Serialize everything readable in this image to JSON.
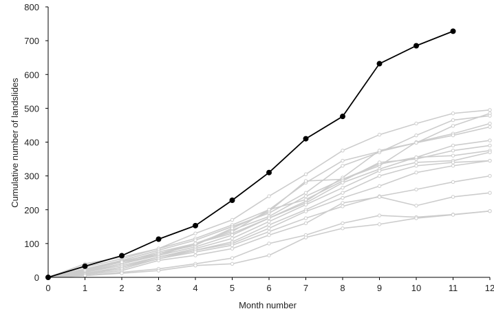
{
  "chart_data": {
    "type": "line",
    "title": "",
    "xlabel": "Month number",
    "ylabel": "Cumulative number of landslides",
    "xlim": [
      0,
      12
    ],
    "ylim": [
      0,
      800
    ],
    "x_ticks": [
      "0",
      "1",
      "2",
      "3",
      "4",
      "5",
      "6",
      "7",
      "8",
      "9",
      "10",
      "11",
      "12"
    ],
    "y_ticks": [
      "0",
      "100",
      "200",
      "300",
      "400",
      "500",
      "600",
      "700",
      "800"
    ],
    "grid": false,
    "legend": "none",
    "colors": {
      "highlight": "#000000",
      "background_series": "#cccccc",
      "axis": "#000000"
    },
    "highlight": {
      "x": [
        0,
        1,
        2,
        3,
        4,
        5,
        6,
        7,
        8,
        9,
        10,
        11
      ],
      "y": [
        0,
        33,
        64,
        113,
        153,
        228,
        310,
        410,
        476,
        632,
        685,
        728
      ]
    },
    "series": [
      {
        "x": [
          0,
          1,
          2,
          3,
          4,
          5,
          6,
          7,
          8,
          9,
          10,
          11,
          12
        ],
        "y": [
          0,
          40,
          60,
          85,
          130,
          170,
          240,
          305,
          375,
          422,
          455,
          485,
          495
        ]
      },
      {
        "x": [
          0,
          1,
          2,
          3,
          4,
          5,
          6,
          7,
          8,
          9,
          10,
          11,
          12
        ],
        "y": [
          0,
          30,
          55,
          85,
          115,
          155,
          200,
          280,
          345,
          372,
          398,
          448,
          485
        ]
      },
      {
        "x": [
          0,
          1,
          2,
          3,
          4,
          5,
          6,
          7,
          8,
          9,
          10,
          11,
          12
        ],
        "y": [
          0,
          25,
          50,
          80,
          110,
          150,
          190,
          250,
          330,
          370,
          420,
          465,
          478
        ]
      },
      {
        "x": [
          0,
          1,
          2,
          3,
          4,
          5,
          6,
          7,
          8,
          9,
          10,
          11,
          12
        ],
        "y": [
          0,
          20,
          45,
          75,
          100,
          140,
          180,
          240,
          290,
          330,
          400,
          425,
          455
        ]
      },
      {
        "x": [
          0,
          1,
          2,
          3,
          4,
          5,
          6,
          7,
          8,
          9,
          10,
          11,
          12
        ],
        "y": [
          0,
          22,
          48,
          70,
          100,
          130,
          175,
          225,
          295,
          375,
          398,
          420,
          445
        ]
      },
      {
        "x": [
          0,
          1,
          2,
          3,
          4,
          5,
          6,
          7,
          8,
          9,
          10,
          11,
          12
        ],
        "y": [
          0,
          18,
          40,
          70,
          95,
          145,
          195,
          285,
          290,
          335,
          355,
          390,
          405
        ]
      },
      {
        "x": [
          0,
          1,
          2,
          3,
          4,
          5,
          6,
          7,
          8,
          9,
          10,
          11,
          12
        ],
        "y": [
          0,
          15,
          40,
          65,
          100,
          135,
          200,
          230,
          285,
          340,
          350,
          375,
          390
        ]
      },
      {
        "x": [
          0,
          1,
          2,
          3,
          4,
          5,
          6,
          7,
          8,
          9,
          10,
          11,
          12
        ],
        "y": [
          0,
          20,
          45,
          65,
          90,
          125,
          175,
          220,
          280,
          320,
          355,
          360,
          375
        ]
      },
      {
        "x": [
          0,
          1,
          2,
          3,
          4,
          5,
          6,
          7,
          8,
          9,
          10,
          11,
          12
        ],
        "y": [
          0,
          15,
          35,
          60,
          85,
          115,
          165,
          215,
          265,
          315,
          340,
          345,
          370
        ]
      },
      {
        "x": [
          0,
          1,
          2,
          3,
          4,
          5,
          6,
          7,
          8,
          9,
          10,
          11,
          12
        ],
        "y": [
          0,
          12,
          30,
          60,
          80,
          105,
          155,
          200,
          250,
          300,
          330,
          340,
          345
        ]
      },
      {
        "x": [
          0,
          1,
          2,
          3,
          4,
          5,
          6,
          7,
          8,
          9,
          10,
          11,
          12
        ],
        "y": [
          0,
          10,
          30,
          55,
          80,
          100,
          145,
          195,
          235,
          270,
          310,
          330,
          345
        ]
      },
      {
        "x": [
          0,
          1,
          2,
          3,
          4,
          5,
          6,
          7,
          8,
          9,
          10,
          11,
          12
        ],
        "y": [
          0,
          10,
          25,
          55,
          75,
          95,
          135,
          175,
          210,
          240,
          260,
          282,
          300
        ]
      },
      {
        "x": [
          0,
          1,
          2,
          3,
          4,
          5,
          6,
          7,
          8,
          9,
          10,
          11,
          12
        ],
        "y": [
          0,
          8,
          20,
          50,
          65,
          85,
          125,
          160,
          220,
          238,
          212,
          238,
          250
        ]
      },
      {
        "x": [
          0,
          1,
          2,
          3,
          4,
          5,
          6,
          7,
          8,
          9,
          10,
          11,
          12
        ],
        "y": [
          0,
          5,
          15,
          25,
          40,
          57,
          100,
          125,
          160,
          183,
          178,
          186,
          196
        ]
      },
      {
        "x": [
          0,
          1,
          2,
          3,
          4,
          5,
          6,
          7,
          8,
          9,
          10,
          11,
          12
        ],
        "y": [
          0,
          5,
          12,
          20,
          35,
          40,
          65,
          118,
          145,
          157,
          175,
          185,
          196
        ]
      }
    ]
  }
}
